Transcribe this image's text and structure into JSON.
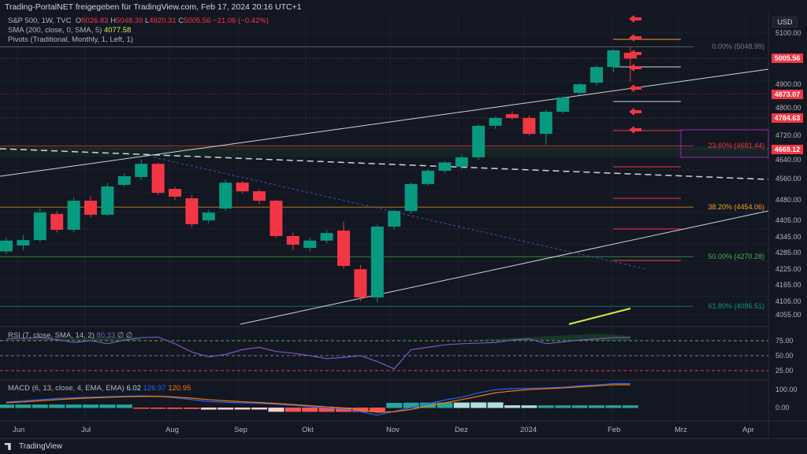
{
  "header": {
    "share_line": "Trading-PortalNET freigegeben für TradingView.com, Feb 17, 2024 20:16 UTC+1"
  },
  "legend": {
    "symbol": "S&P 500, 1W, TVC",
    "o_label": "O",
    "o": "5026.83",
    "h_label": "H",
    "h": "5048.39",
    "l_label": "L",
    "l": "4920.31",
    "c_label": "C",
    "c": "5005.56",
    "change": "−21.06 (−0.42%)",
    "sma": "SMA (200, close, 0, SMA, 5)",
    "sma_value": "4077.58",
    "pivots": "Pivots (Traditional, Monthly, 1, Left, 1)"
  },
  "currency": "USD",
  "price_axis": [
    "5100.00",
    "4900.00",
    "4800.00",
    "4720.00",
    "4640.00",
    "4560.00",
    "4480.00",
    "4405.00",
    "4345.00",
    "4285.00",
    "4225.00",
    "4165.00",
    "4105.00",
    "4055.00"
  ],
  "price_tags": [
    {
      "label": "5005.56",
      "value": 5005.56
    },
    {
      "label": "4873.07",
      "value": 4873.07
    },
    {
      "label": "4784.63",
      "value": 4784.63
    },
    {
      "label": "4669.12",
      "value": 4669.12
    }
  ],
  "fib_levels": [
    {
      "label": "0.00% (5048.99)",
      "value": 5048.99,
      "color": "#787b86"
    },
    {
      "label": "23.60% (4681.44)",
      "value": 4681.44,
      "color": "#f23645"
    },
    {
      "label": "38.20% (4454.06)",
      "value": 4454.06,
      "color": "#f7a21b"
    },
    {
      "label": "50.00% (4270.28)",
      "value": 4270.28,
      "color": "#4caf50"
    },
    {
      "label": "61.80% (4086.51)",
      "value": 4086.51,
      "color": "#089981"
    }
  ],
  "rsi": {
    "label": "RSI (7, close, SMA, 14, 2)",
    "value": "80.33",
    "extra": "∅ ∅",
    "axis": [
      "75.00",
      "50.00",
      "25.00"
    ],
    "values": [
      78,
      79,
      80,
      77,
      72,
      75,
      70,
      76,
      80,
      81,
      70,
      56,
      48,
      52,
      60,
      64,
      57,
      54,
      50,
      45,
      47,
      50,
      40,
      28,
      60,
      64,
      68,
      70,
      71,
      72,
      76,
      78,
      70,
      73,
      76,
      78,
      80,
      80.33
    ]
  },
  "macd": {
    "label": "MACD (6, 13, close, 4, EMA, EMA)",
    "hist_value": "6.02",
    "macd_value": "126.97",
    "signal_value": "120.95",
    "axis": [
      "100.00",
      "0.00"
    ],
    "macd": [
      30,
      35,
      42,
      48,
      52,
      55,
      58,
      60,
      62,
      60,
      52,
      42,
      32,
      28,
      25,
      22,
      18,
      12,
      5,
      -2,
      -8,
      -22,
      -40,
      -20,
      0,
      20,
      40,
      55,
      78,
      95,
      100,
      102,
      104,
      108,
      115,
      120,
      127,
      126.97
    ],
    "signal": [
      25,
      30,
      36,
      42,
      47,
      51,
      54,
      57,
      59,
      60,
      56,
      50,
      42,
      36,
      31,
      27,
      22,
      16,
      10,
      4,
      -2,
      -12,
      -25,
      -22,
      -10,
      8,
      25,
      42,
      60,
      78,
      88,
      95,
      100,
      104,
      110,
      115,
      121,
      120.95
    ]
  },
  "time_axis": [
    "Jun",
    "Jul",
    "Aug",
    "Sep",
    "Okt",
    "Nov",
    "Dez",
    "2024",
    "Feb",
    "Mrz",
    "Apr"
  ],
  "footer": {
    "brand": "TradingView"
  },
  "colors": {
    "up": "#089981",
    "down": "#f23645",
    "sma": "#d4f04a"
  },
  "chart_data": {
    "type": "candlestick",
    "timeframe": "1W",
    "ohlc": [
      [
        4290,
        4340,
        4280,
        4330
      ],
      [
        4312,
        4350,
        4295,
        4332
      ],
      [
        4332,
        4450,
        4325,
        4434
      ],
      [
        4429,
        4440,
        4360,
        4370
      ],
      [
        4370,
        4490,
        4360,
        4478
      ],
      [
        4478,
        4495,
        4415,
        4426
      ],
      [
        4426,
        4545,
        4420,
        4531
      ],
      [
        4537,
        4580,
        4530,
        4569
      ],
      [
        4566,
        4630,
        4555,
        4615
      ],
      [
        4615,
        4620,
        4500,
        4507
      ],
      [
        4522,
        4530,
        4480,
        4493
      ],
      [
        4487,
        4500,
        4380,
        4391
      ],
      [
        4405,
        4445,
        4395,
        4434
      ],
      [
        4449,
        4555,
        4440,
        4545
      ],
      [
        4545,
        4550,
        4505,
        4513
      ],
      [
        4513,
        4520,
        4465,
        4478
      ],
      [
        4478,
        4482,
        4340,
        4347
      ],
      [
        4347,
        4360,
        4295,
        4315
      ],
      [
        4303,
        4340,
        4290,
        4330
      ],
      [
        4330,
        4370,
        4320,
        4358
      ],
      [
        4367,
        4400,
        4225,
        4236
      ],
      [
        4224,
        4240,
        4105,
        4119
      ],
      [
        4119,
        4390,
        4100,
        4382
      ],
      [
        4382,
        4445,
        4370,
        4440
      ],
      [
        4440,
        4545,
        4430,
        4540
      ],
      [
        4540,
        4595,
        4535,
        4589
      ],
      [
        4589,
        4625,
        4580,
        4620
      ],
      [
        4604,
        4645,
        4595,
        4639
      ],
      [
        4639,
        4760,
        4630,
        4756
      ],
      [
        4756,
        4790,
        4745,
        4785
      ],
      [
        4799,
        4810,
        4780,
        4785
      ],
      [
        4785,
        4795,
        4720,
        4726
      ],
      [
        4726,
        4815,
        4685,
        4808
      ],
      [
        4808,
        4865,
        4800,
        4861
      ],
      [
        4878,
        4915,
        4870,
        4910
      ],
      [
        4916,
        4980,
        4905,
        4974
      ],
      [
        4974,
        5040,
        4955,
        5036
      ],
      [
        5026.83,
        5048.39,
        4920.31,
        5005.56
      ]
    ]
  }
}
